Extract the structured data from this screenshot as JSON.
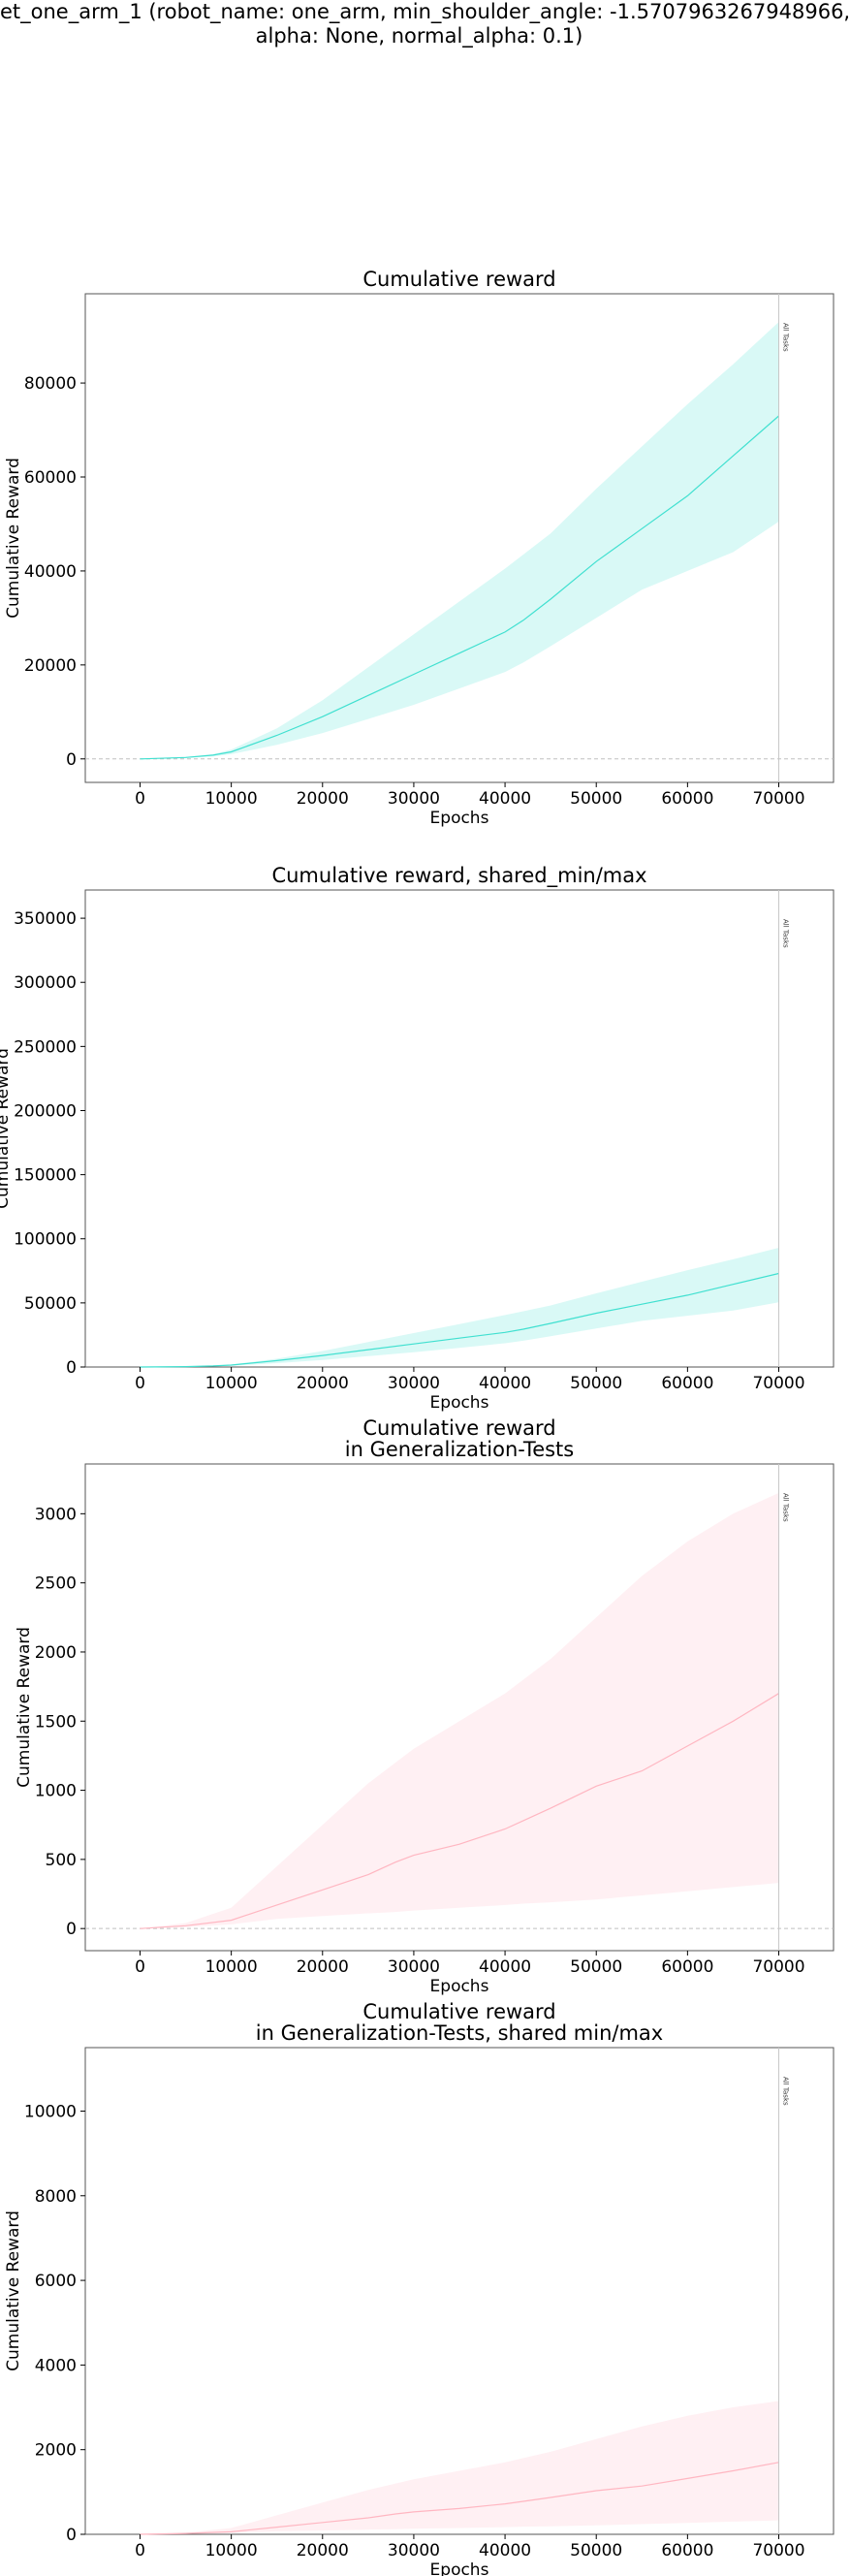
{
  "page": {
    "suptitle_lines": [
      "et_one_arm_1 (robot_name: one_arm, min_shoulder_angle: -1.5707963267948966,",
      "alpha: None, normal_alpha: 0.1)"
    ]
  },
  "colors": {
    "turquoise": "#40e0d0",
    "pink": "#ffb6c1",
    "vline": "#c8c8c8",
    "frame": "#555555"
  },
  "chart_data": [
    {
      "type": "line",
      "title": [
        "Cumulative reward"
      ],
      "xlabel": "Epochs",
      "ylabel": "Cumulative Reward",
      "xlim": [
        -6000,
        76000
      ],
      "ylim": [
        -5000,
        99000
      ],
      "xticks": [
        0,
        10000,
        20000,
        30000,
        40000,
        50000,
        60000,
        70000
      ],
      "yticks": [
        0,
        20000,
        40000,
        60000,
        80000
      ],
      "zero_line": true,
      "vline": {
        "x": 70000,
        "label": "All Tasks"
      },
      "color": "turquoise",
      "x": [
        0,
        5000,
        8000,
        10000,
        15000,
        20000,
        25000,
        30000,
        35000,
        40000,
        42000,
        45000,
        50000,
        55000,
        60000,
        65000,
        70000
      ],
      "mean": [
        0,
        300,
        800,
        1500,
        5000,
        9000,
        13500,
        18000,
        22500,
        27000,
        29500,
        34000,
        42000,
        49000,
        56000,
        64500,
        73000
      ],
      "lower": [
        0,
        200,
        500,
        1000,
        3000,
        5500,
        8500,
        11500,
        15000,
        18500,
        20500,
        24000,
        30000,
        36000,
        40000,
        44000,
        50500
      ],
      "upper": [
        0,
        400,
        1000,
        2000,
        6500,
        12500,
        19500,
        26500,
        33500,
        40500,
        43500,
        48000,
        57500,
        66500,
        75500,
        84000,
        93000
      ]
    },
    {
      "type": "line",
      "title": [
        "Cumulative reward, shared_min/max"
      ],
      "xlabel": "Epochs",
      "ylabel": "Cumulative Reward",
      "xlim": [
        -6000,
        76000
      ],
      "ylim": [
        0,
        372000
      ],
      "xticks": [
        0,
        10000,
        20000,
        30000,
        40000,
        50000,
        60000,
        70000
      ],
      "yticks": [
        0,
        50000,
        100000,
        150000,
        200000,
        250000,
        300000,
        350000
      ],
      "zero_line": false,
      "vline": {
        "x": 70000,
        "label": "All Tasks"
      },
      "color": "turquoise",
      "x": [
        0,
        5000,
        8000,
        10000,
        15000,
        20000,
        25000,
        30000,
        35000,
        40000,
        42000,
        45000,
        50000,
        55000,
        60000,
        65000,
        70000
      ],
      "mean": [
        0,
        300,
        800,
        1500,
        5000,
        9000,
        13500,
        18000,
        22500,
        27000,
        29500,
        34000,
        42000,
        49000,
        56000,
        64500,
        73000
      ],
      "lower": [
        0,
        200,
        500,
        1000,
        3000,
        5500,
        8500,
        11500,
        15000,
        18500,
        20500,
        24000,
        30000,
        36000,
        40000,
        44000,
        50500
      ],
      "upper": [
        0,
        400,
        1000,
        2000,
        6500,
        12500,
        19500,
        26500,
        33500,
        40500,
        43500,
        48000,
        57500,
        66500,
        75500,
        84000,
        93000
      ]
    },
    {
      "type": "line",
      "title": [
        "Cumulative reward",
        "in Generalization-Tests"
      ],
      "xlabel": "Epochs",
      "ylabel": "Cumulative Reward",
      "xlim": [
        -6000,
        76000
      ],
      "ylim": [
        -160,
        3360
      ],
      "xticks": [
        0,
        10000,
        20000,
        30000,
        40000,
        50000,
        60000,
        70000
      ],
      "yticks": [
        0,
        500,
        1000,
        1500,
        2000,
        2500,
        3000
      ],
      "zero_line": true,
      "vline": {
        "x": 70000,
        "label": "All Tasks"
      },
      "color": "pink",
      "x": [
        0,
        5000,
        10000,
        15000,
        20000,
        25000,
        28000,
        30000,
        35000,
        40000,
        42000,
        45000,
        50000,
        55000,
        60000,
        65000,
        70000
      ],
      "mean": [
        0,
        20,
        60,
        170,
        280,
        390,
        480,
        530,
        610,
        720,
        780,
        870,
        1030,
        1140,
        1320,
        1500,
        1700
      ],
      "lower": [
        0,
        10,
        30,
        70,
        90,
        110,
        120,
        130,
        150,
        170,
        180,
        190,
        210,
        240,
        270,
        300,
        330
      ],
      "upper": [
        0,
        40,
        150,
        450,
        750,
        1050,
        1200,
        1300,
        1500,
        1700,
        1800,
        1950,
        2250,
        2550,
        2800,
        3000,
        3150
      ]
    },
    {
      "type": "line",
      "title": [
        "Cumulative reward",
        "in Generalization-Tests, shared min/max"
      ],
      "xlabel": "Epochs",
      "ylabel": "Cumulative Reward",
      "xlim": [
        -6000,
        76000
      ],
      "ylim": [
        0,
        11500
      ],
      "xticks": [
        0,
        10000,
        20000,
        30000,
        40000,
        50000,
        60000,
        70000
      ],
      "yticks": [
        0,
        2000,
        4000,
        6000,
        8000,
        10000
      ],
      "zero_line": false,
      "vline": {
        "x": 70000,
        "label": "All Tasks"
      },
      "color": "pink",
      "x": [
        0,
        5000,
        10000,
        15000,
        20000,
        25000,
        28000,
        30000,
        35000,
        40000,
        42000,
        45000,
        50000,
        55000,
        60000,
        65000,
        70000
      ],
      "mean": [
        0,
        20,
        60,
        170,
        280,
        390,
        480,
        530,
        610,
        720,
        780,
        870,
        1030,
        1140,
        1320,
        1500,
        1700
      ],
      "lower": [
        0,
        10,
        30,
        70,
        90,
        110,
        120,
        130,
        150,
        170,
        180,
        190,
        210,
        240,
        270,
        300,
        330
      ],
      "upper": [
        0,
        40,
        150,
        450,
        750,
        1050,
        1200,
        1300,
        1500,
        1700,
        1800,
        1950,
        2250,
        2550,
        2800,
        3000,
        3150
      ]
    }
  ]
}
